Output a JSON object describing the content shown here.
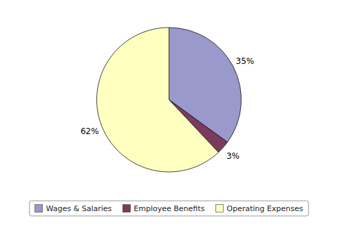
{
  "chart_data": {
    "type": "pie",
    "categories": [
      "Wages & Salaries",
      "Employee Benefits",
      "Operating Expenses"
    ],
    "values": [
      35,
      3,
      62
    ],
    "value_labels": [
      "35%",
      "3%",
      "62%"
    ],
    "colors": [
      "#9999CC",
      "#7B3B5E",
      "#FFFFC0"
    ],
    "data_labels": true,
    "legend": "bottom"
  }
}
